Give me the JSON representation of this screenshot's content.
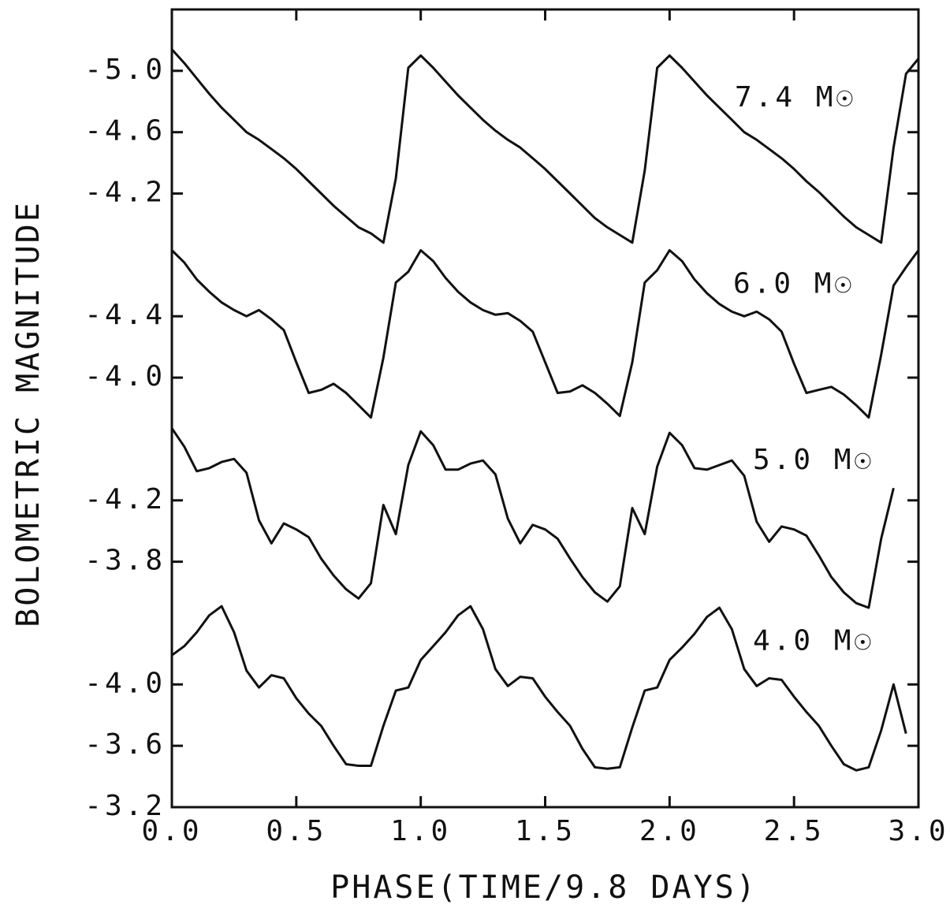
{
  "chart_data": {
    "type": "line",
    "xlabel": "PHASE(TIME/9.8 DAYS)",
    "ylabel": "BOLOMETRIC MAGNITUDE",
    "color": "#111111",
    "xlim": [
      0,
      3
    ],
    "xticks": [
      {
        "value": 0,
        "label": "0.0"
      },
      {
        "value": 0.5,
        "label": "0.5"
      },
      {
        "value": 1,
        "label": "1.0"
      },
      {
        "value": 1.5,
        "label": "1.5"
      },
      {
        "value": 2,
        "label": "2.0"
      },
      {
        "value": 2.5,
        "label": "2.5"
      },
      {
        "value": 3,
        "label": "3.0"
      }
    ],
    "x": [
      0,
      0.05,
      0.1,
      0.15,
      0.2,
      0.25,
      0.3,
      0.35,
      0.4,
      0.45,
      0.5,
      0.55,
      0.6,
      0.65,
      0.7,
      0.75,
      0.8,
      0.85,
      0.9,
      0.95,
      1,
      1.05,
      1.1,
      1.15,
      1.2,
      1.25,
      1.3,
      1.35,
      1.4,
      1.45,
      1.5,
      1.55,
      1.6,
      1.65,
      1.7,
      1.75,
      1.8,
      1.85,
      1.9,
      1.95,
      2,
      2.05,
      2.1,
      2.15,
      2.2,
      2.25,
      2.3,
      2.35,
      2.4,
      2.45,
      2.5,
      2.55,
      2.6,
      2.65,
      2.7,
      2.75,
      2.8,
      2.85,
      2.9,
      2.95,
      3
    ],
    "panels": [
      {
        "label": "7.4 M☉",
        "ylim": [
          -3.8,
          -5.4
        ],
        "yticks": [
          {
            "value": -5,
            "label": "-5.0"
          },
          {
            "value": -4.6,
            "label": "-4.6"
          },
          {
            "value": -4.2,
            "label": "-4.2"
          }
        ],
        "values": [
          -5.14,
          -5.05,
          -4.95,
          -4.85,
          -4.76,
          -4.68,
          -4.6,
          -4.55,
          -4.49,
          -4.43,
          -4.36,
          -4.28,
          -4.2,
          -4.12,
          -4.05,
          -3.98,
          -3.94,
          -3.88,
          -4.3,
          -5.02,
          -5.1,
          -5.02,
          -4.93,
          -4.84,
          -4.76,
          -4.68,
          -4.61,
          -4.55,
          -4.5,
          -4.43,
          -4.36,
          -4.28,
          -4.2,
          -4.12,
          -4.04,
          -3.98,
          -3.93,
          -3.88,
          -4.35,
          -5.02,
          -5.1,
          -5.02,
          -4.93,
          -4.84,
          -4.76,
          -4.68,
          -4.6,
          -4.55,
          -4.49,
          -4.43,
          -4.36,
          -4.28,
          -4.21,
          -4.13,
          -4.05,
          -3.98,
          -3.93,
          -3.88,
          -4.5,
          -4.98,
          -5.08
        ]
      },
      {
        "label": "6.0 M☉",
        "ylim": [
          -3.6,
          -4.8
        ],
        "yticks": [
          {
            "value": -4.4,
            "label": "-4.4"
          },
          {
            "value": -4,
            "label": "-4.0"
          }
        ],
        "values": [
          -4.83,
          -4.75,
          -4.64,
          -4.56,
          -4.49,
          -4.44,
          -4.4,
          -4.44,
          -4.38,
          -4.31,
          -4.1,
          -3.9,
          -3.92,
          -3.96,
          -3.9,
          -3.82,
          -3.74,
          -4.13,
          -4.62,
          -4.69,
          -4.83,
          -4.76,
          -4.65,
          -4.56,
          -4.49,
          -4.44,
          -4.41,
          -4.42,
          -4.37,
          -4.3,
          -4.1,
          -3.9,
          -3.91,
          -3.95,
          -3.9,
          -3.83,
          -3.75,
          -4.1,
          -4.62,
          -4.7,
          -4.83,
          -4.76,
          -4.64,
          -4.55,
          -4.48,
          -4.43,
          -4.4,
          -4.43,
          -4.38,
          -4.3,
          -4.09,
          -3.9,
          -3.92,
          -3.94,
          -3.89,
          -3.82,
          -3.74,
          -4.15,
          -4.6,
          -4.72,
          -4.83
        ]
      },
      {
        "label": "5.0 M☉",
        "ylim": [
          -3.4,
          -4.6
        ],
        "yticks": [
          {
            "value": -4.2,
            "label": "-4.2"
          },
          {
            "value": -3.8,
            "label": "-3.8"
          }
        ],
        "values": [
          -4.67,
          -4.55,
          -4.39,
          -4.41,
          -4.45,
          -4.47,
          -4.38,
          -4.07,
          -3.92,
          -4.05,
          -4.01,
          -3.96,
          -3.82,
          -3.71,
          -3.62,
          -3.56,
          -3.66,
          -4.17,
          -3.98,
          -4.43,
          -4.65,
          -4.56,
          -4.4,
          -4.4,
          -4.44,
          -4.46,
          -4.37,
          -4.08,
          -3.92,
          -4.04,
          -4.01,
          -3.95,
          -3.82,
          -3.7,
          -3.6,
          -3.54,
          -3.64,
          -4.15,
          -3.98,
          -4.42,
          -4.64,
          -4.56,
          -4.41,
          -4.4,
          -4.43,
          -4.46,
          -4.36,
          -4.06,
          -3.93,
          -4.03,
          -4.01,
          -3.97,
          -3.84,
          -3.7,
          -3.6,
          -3.53,
          -3.5,
          -3.95,
          -4.28,
          null,
          null
        ]
      },
      {
        "label": "4.0 M☉",
        "ylim": [
          -3.2,
          -4.4
        ],
        "yticks": [
          {
            "value": -4,
            "label": "-4.0"
          },
          {
            "value": -3.6,
            "label": "-3.6"
          },
          {
            "value": -3.2,
            "label": "-3.2"
          }
        ],
        "values": [
          -4.19,
          -4.25,
          -4.34,
          -4.45,
          -4.51,
          -4.34,
          -4.09,
          -3.98,
          -4.06,
          -4.04,
          -3.91,
          -3.81,
          -3.73,
          -3.6,
          -3.48,
          -3.47,
          -3.47,
          -3.73,
          -3.96,
          -3.98,
          -4.16,
          -4.25,
          -4.34,
          -4.45,
          -4.51,
          -4.36,
          -4.1,
          -3.99,
          -4.05,
          -4.04,
          -3.92,
          -3.82,
          -3.73,
          -3.58,
          -3.46,
          -3.45,
          -3.46,
          -3.72,
          -3.96,
          -3.98,
          -4.16,
          -4.24,
          -4.33,
          -4.44,
          -4.5,
          -4.36,
          -4.1,
          -3.99,
          -4.04,
          -4.03,
          -3.92,
          -3.82,
          -3.73,
          -3.6,
          -3.48,
          -3.44,
          -3.46,
          -3.7,
          -4.0,
          -3.68,
          null
        ]
      }
    ]
  }
}
